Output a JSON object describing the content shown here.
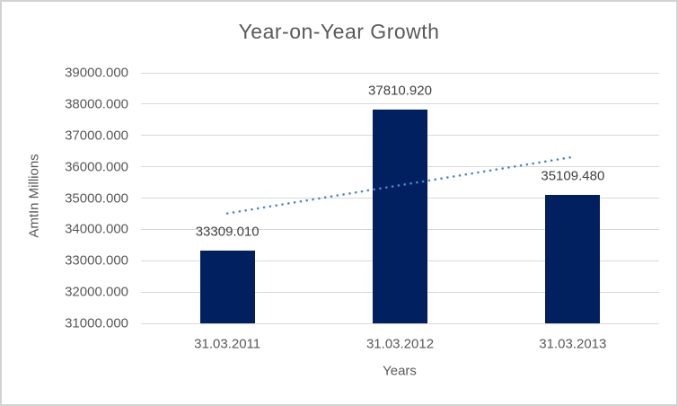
{
  "chart_data": {
    "type": "bar",
    "title": "Year-on-Year Growth",
    "xlabel": "Years",
    "ylabel": "AmtIn Millions",
    "categories": [
      "31.03.2011",
      "31.03.2012",
      "31.03.2013"
    ],
    "values": [
      33309.01,
      37810.92,
      35109.48
    ],
    "data_labels": [
      "33309.010",
      "37810.920",
      "35109.480"
    ],
    "ylim": [
      31000,
      39000
    ],
    "ytick_step": 1000,
    "ytick_labels": [
      "31000.000",
      "32000.000",
      "33000.000",
      "34000.000",
      "35000.000",
      "36000.000",
      "37000.000",
      "38000.000",
      "39000.000"
    ],
    "grid": true,
    "legend": "none",
    "trendline": {
      "type": "linear",
      "style": "dotted",
      "endpoint_values": [
        34509.6,
        36310.1
      ]
    },
    "colors": {
      "bar": "#002060",
      "trendline": "#4e86c8",
      "gridline": "#d9d9d9",
      "title_text": "#595959",
      "axis_text": "#595959",
      "data_label_text": "#404040",
      "border": "#d2d2d2"
    }
  }
}
